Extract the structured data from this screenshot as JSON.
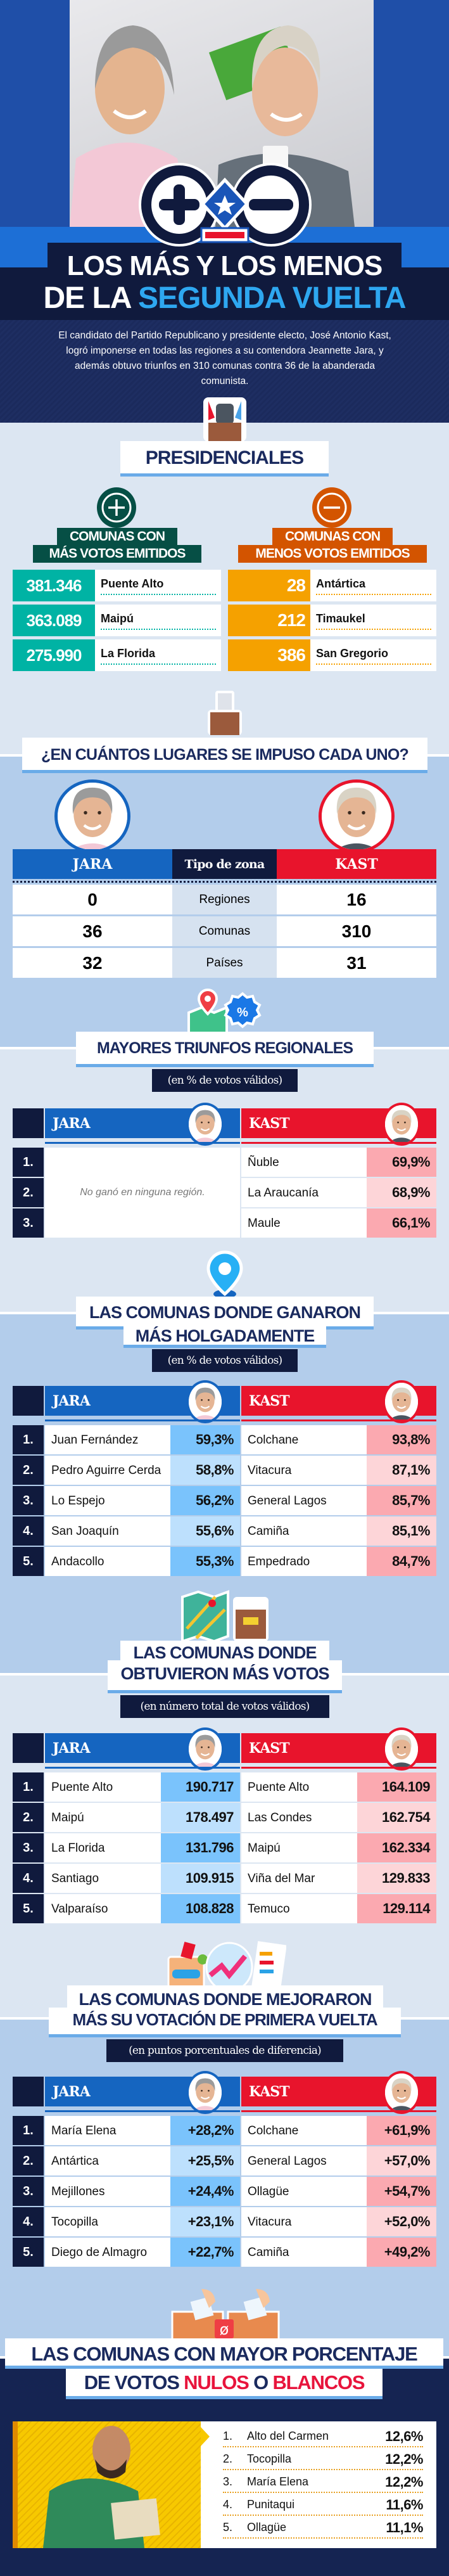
{
  "header": {
    "title_line1": "LOS MÁS Y LOS MENOS",
    "title_line2_a": "DE LA",
    "title_line2_b": "SEGUNDA VUELTA",
    "description": "El candidato del Partido Republicano y presidente electo, José Antonio Kast, logró imponerse en todas las regiones a su contendora Jeannette Jara, y además obtuvo triunfos en 310 comunas contra 36 de la abanderada comunista."
  },
  "presidenciales": {
    "title": "PRESIDENCIALES",
    "mas": {
      "line1": "COMUNAS CON",
      "line2": "MÁS VOTOS EMITIDOS",
      "rows": [
        {
          "value": "381.346",
          "name": "Puente Alto"
        },
        {
          "value": "363.089",
          "name": "Maipú"
        },
        {
          "value": "275.990",
          "name": "La Florida"
        }
      ]
    },
    "menos": {
      "line1": "COMUNAS CON",
      "line2": "MENOS VOTOS EMITIDOS",
      "rows": [
        {
          "value": "28",
          "name": "Antártica"
        },
        {
          "value": "212",
          "name": "Timaukel"
        },
        {
          "value": "386",
          "name": "San Gregorio"
        }
      ]
    }
  },
  "lugares": {
    "title": "¿EN CUÁNTOS LUGARES SE IMPUSO CADA UNO?",
    "jara_label": "JARA",
    "zona_label": "Tipo de zona",
    "kast_label": "KAST",
    "rows": [
      {
        "jara": "0",
        "zona": "Regiones",
        "kast": "16"
      },
      {
        "jara": "36",
        "zona": "Comunas",
        "kast": "310"
      },
      {
        "jara": "32",
        "zona": "Países",
        "kast": "31"
      }
    ]
  },
  "regionales": {
    "title": "MAYORES TRIUNFOS REGIONALES",
    "subtitle": "(en % de votos válidos)",
    "jara_label": "JARA",
    "kast_label": "KAST",
    "jara_note": "No ganó en ninguna región.",
    "rows": [
      {
        "rank": "1.",
        "kast_name": "Ñuble",
        "kast_value": "69,9%"
      },
      {
        "rank": "2.",
        "kast_name": "La Araucanía",
        "kast_value": "68,9%"
      },
      {
        "rank": "3.",
        "kast_name": "Maule",
        "kast_value": "66,1%"
      }
    ]
  },
  "holgadas": {
    "title_line1": "LAS COMUNAS DONDE GANARON",
    "title_line2": "MÁS HOLGADAMENTE",
    "subtitle": "(en % de votos válidos)",
    "jara_label": "JARA",
    "kast_label": "KAST",
    "rows": [
      {
        "rank": "1.",
        "jara_name": "Juan Fernández",
        "jara_value": "59,3%",
        "kast_name": "Colchane",
        "kast_value": "93,8%"
      },
      {
        "rank": "2.",
        "jara_name": "Pedro Aguirre Cerda",
        "jara_value": "58,8%",
        "kast_name": "Vitacura",
        "kast_value": "87,1%"
      },
      {
        "rank": "3.",
        "jara_name": "Lo Espejo",
        "jara_value": "56,2%",
        "kast_name": "General Lagos",
        "kast_value": "85,7%"
      },
      {
        "rank": "4.",
        "jara_name": "San Joaquín",
        "jara_value": "55,6%",
        "kast_name": "Camiña",
        "kast_value": "85,1%"
      },
      {
        "rank": "5.",
        "jara_name": "Andacollo",
        "jara_value": "55,3%",
        "kast_name": "Empedrado",
        "kast_value": "84,7%"
      }
    ]
  },
  "votos": {
    "title_line1": "LAS COMUNAS DONDE",
    "title_line2": "OBTUVIERON MÁS VOTOS",
    "subtitle": "(en número total de votos válidos)",
    "jara_label": "JARA",
    "kast_label": "KAST",
    "rows": [
      {
        "rank": "1.",
        "jara_name": "Puente Alto",
        "jara_value": "190.717",
        "kast_name": "Puente Alto",
        "kast_value": "164.109"
      },
      {
        "rank": "2.",
        "jara_name": "Maipú",
        "jara_value": "178.497",
        "kast_name": "Las Condes",
        "kast_value": "162.754"
      },
      {
        "rank": "3.",
        "jara_name": "La Florida",
        "jara_value": "131.796",
        "kast_name": "Maipú",
        "kast_value": "162.334"
      },
      {
        "rank": "4.",
        "jara_name": "Santiago",
        "jara_value": "109.915",
        "kast_name": "Viña del Mar",
        "kast_value": "129.833"
      },
      {
        "rank": "5.",
        "jara_name": "Valparaíso",
        "jara_value": "108.828",
        "kast_name": "Temuco",
        "kast_value": "129.114"
      }
    ]
  },
  "mejoraron": {
    "title_line1": "LAS COMUNAS DONDE MEJORARON",
    "title_line2": "MÁS SU VOTACIÓN DE PRIMERA VUELTA",
    "subtitle": "(en puntos porcentuales de diferencia)",
    "jara_label": "JARA",
    "kast_label": "KAST",
    "rows": [
      {
        "rank": "1.",
        "jara_name": "María Elena",
        "jara_value": "+28,2%",
        "kast_name": "Colchane",
        "kast_value": "+61,9%"
      },
      {
        "rank": "2.",
        "jara_name": "Antártica",
        "jara_value": "+25,5%",
        "kast_name": "General Lagos",
        "kast_value": "+57,0%"
      },
      {
        "rank": "3.",
        "jara_name": "Mejillones",
        "jara_value": "+24,4%",
        "kast_name": "Ollagüe",
        "kast_value": "+54,7%"
      },
      {
        "rank": "4.",
        "jara_name": "Tocopilla",
        "jara_value": "+23,1%",
        "kast_name": "Vitacura",
        "kast_value": "+52,0%"
      },
      {
        "rank": "5.",
        "jara_name": "Diego de Almagro",
        "jara_value": "+22,7%",
        "kast_name": "Camiña",
        "kast_value": "+49,2%"
      }
    ]
  },
  "nulos": {
    "title_line1": "LAS COMUNAS CON MAYOR PORCENTAJE",
    "title_line2_a": "DE VOTOS",
    "nulos": "NULOS",
    "o": "O",
    "blancos": "BLANCOS",
    "rows": [
      {
        "rank": "1.",
        "name": "Alto del Carmen",
        "value": "12,6%"
      },
      {
        "rank": "2.",
        "name": "Tocopilla",
        "value": "12,2%"
      },
      {
        "rank": "3.",
        "name": "María Elena",
        "value": "12,2%"
      },
      {
        "rank": "4.",
        "name": "Punitaqui",
        "value": "11,6%"
      },
      {
        "rank": "5.",
        "name": "Ollagüe",
        "value": "11,1%"
      }
    ]
  },
  "colors": {
    "navy": "#101a3d",
    "jara_blue": "#1565c0",
    "kast_red": "#e8142c",
    "teal": "#00b3a4",
    "orange": "#f5a100",
    "accent": "#2ea7f0"
  }
}
